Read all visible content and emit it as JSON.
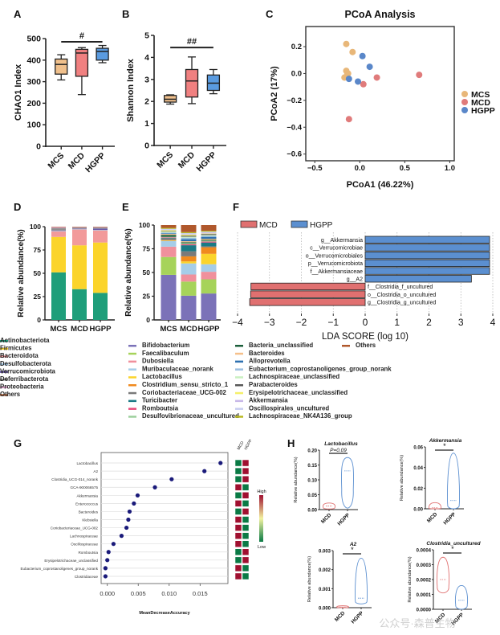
{
  "figure": {
    "panel_labels": [
      "A",
      "B",
      "C",
      "D",
      "E",
      "F",
      "G",
      "H"
    ],
    "watermark": "公众号·森普生物"
  },
  "chart_data": [
    {
      "panel": "A",
      "type": "box",
      "title": "",
      "ylabel": "CHAO1 Index",
      "xlabel": "",
      "categories": [
        "MCS",
        "MCD",
        "HGPP"
      ],
      "ylim": [
        0,
        500
      ],
      "yticks": [
        0,
        100,
        200,
        300,
        400,
        500
      ],
      "colors": [
        "#f0c08c",
        "#f08080",
        "#5a9be0"
      ],
      "boxes": [
        {
          "min": 308,
          "q1": 335,
          "median": 380,
          "q3": 405,
          "max": 425
        },
        {
          "min": 240,
          "q1": 325,
          "median": 433,
          "q3": 450,
          "max": 458
        },
        {
          "min": 388,
          "q1": 400,
          "median": 440,
          "q3": 455,
          "max": 468
        }
      ],
      "significance": {
        "label": "#",
        "from": "MCS",
        "to": "HGPP",
        "y": 485
      }
    },
    {
      "panel": "B",
      "type": "box",
      "title": "",
      "ylabel": "Shannon Index",
      "xlabel": "",
      "categories": [
        "MCS",
        "MCD",
        "HGPP"
      ],
      "ylim": [
        0,
        5
      ],
      "yticks": [
        0,
        1,
        2,
        3,
        4,
        5
      ],
      "colors": [
        "#f0c08c",
        "#f08080",
        "#5a9be0"
      ],
      "boxes": [
        {
          "min": 1.88,
          "q1": 1.97,
          "median": 2.1,
          "q3": 2.27,
          "max": 2.3
        },
        {
          "min": 1.9,
          "q1": 2.2,
          "median": 2.93,
          "q3": 3.45,
          "max": 4.02
        },
        {
          "min": 2.35,
          "q1": 2.5,
          "median": 2.83,
          "q3": 3.2,
          "max": 3.45
        }
      ],
      "significance": {
        "label": "##",
        "from": "MCS",
        "to": "HGPP",
        "y": 4.45
      }
    },
    {
      "panel": "C",
      "type": "scatter",
      "title": "PCoA Analysis",
      "xlabel": "PCoA1 (46.22%)",
      "ylabel": "PCoA2 (17%)",
      "xlim": [
        -0.6,
        1.05
      ],
      "ylim": [
        -0.65,
        0.35
      ],
      "xticks": [
        -0.5,
        0.0,
        0.5,
        1.0
      ],
      "yticks": [
        0.2,
        0.0,
        -0.2,
        -0.4,
        -0.6
      ],
      "legend_position": "right",
      "series": [
        {
          "name": "MCS",
          "color": "#e8b779",
          "points": [
            [
              -0.15,
              0.22
            ],
            [
              -0.08,
              0.16
            ],
            [
              -0.15,
              0.02
            ],
            [
              -0.13,
              0.0
            ],
            [
              -0.17,
              -0.03
            ],
            [
              -0.14,
              -0.01
            ]
          ]
        },
        {
          "name": "MCD",
          "color": "#e07b7b",
          "points": [
            [
              0.19,
              -0.03
            ],
            [
              0.66,
              -0.01
            ],
            [
              0.04,
              -0.08
            ],
            [
              -0.12,
              -0.34
            ]
          ]
        },
        {
          "name": "HGPP",
          "color": "#5a87c9",
          "points": [
            [
              0.03,
              0.13
            ],
            [
              0.11,
              0.05
            ],
            [
              -0.12,
              -0.04
            ],
            [
              -0.02,
              -0.06
            ]
          ]
        }
      ]
    },
    {
      "panel": "D",
      "type": "bar",
      "stacked": true,
      "ylabel": "Relative abundance(%)",
      "categories": [
        "MCS",
        "MCD",
        "HGPP"
      ],
      "ylim": [
        0,
        100
      ],
      "yticks": [
        0,
        25,
        50,
        75,
        100
      ],
      "series": [
        {
          "name": "Actinobacteriota",
          "color": "#1f9e7a",
          "values": [
            51,
            33,
            29
          ]
        },
        {
          "name": "Firmicutes",
          "color": "#fbd42b",
          "values": [
            38,
            47,
            54
          ]
        },
        {
          "name": "Bacteroidota",
          "color": "#f29a9a",
          "values": [
            6,
            17,
            13
          ]
        },
        {
          "name": "Desulfobacterota",
          "color": "#a8cce8",
          "values": [
            0.5,
            0.5,
            0.5
          ]
        },
        {
          "name": "Verrucomicrobiota",
          "color": "#6a5aa8",
          "values": [
            0.5,
            0.5,
            1.5
          ]
        },
        {
          "name": "Deferribacterota",
          "color": "#8e8e8e",
          "values": [
            2.5,
            1,
            1
          ]
        },
        {
          "name": "Proteobacteria",
          "color": "#d9a0c8",
          "values": [
            1,
            0.5,
            0.5
          ]
        },
        {
          "name": "Others",
          "color": "#b5653a",
          "values": [
            0.5,
            0.5,
            0.5
          ]
        }
      ]
    },
    {
      "panel": "E",
      "type": "bar",
      "stacked": true,
      "ylabel": "Relative abundance(%)",
      "categories": [
        "MCS",
        "MCD",
        "HGPP"
      ],
      "ylim": [
        0,
        100
      ],
      "yticks": [
        0,
        25,
        50,
        75,
        100
      ],
      "series": [
        {
          "name": "Bifidobacterium",
          "color": "#7b72b8",
          "values": [
            48,
            24,
            28
          ]
        },
        {
          "name": "Faecalibaculum",
          "color": "#a6d35a",
          "values": [
            19,
            14,
            15
          ]
        },
        {
          "name": "Dubosiella",
          "color": "#f0909c",
          "values": [
            11,
            7,
            8
          ]
        },
        {
          "name": "Muribaculaceae_norank",
          "color": "#a6cde8",
          "values": [
            6,
            11,
            8
          ]
        },
        {
          "name": "Lactobacillus",
          "color": "#fbd42b",
          "values": [
            0.5,
            2,
            11
          ]
        },
        {
          "name": "Clostridium_sensu_stricto_1",
          "color": "#f08a1e",
          "values": [
            0.5,
            5,
            7
          ]
        },
        {
          "name": "Coriobacteriaceae_UCG-002",
          "color": "#7a7a7a",
          "values": [
            2,
            5,
            1
          ]
        },
        {
          "name": "Turicibacter",
          "color": "#1a7a86",
          "values": [
            0.5,
            6,
            4
          ]
        },
        {
          "name": "Romboutsia",
          "color": "#e84a7a",
          "values": [
            0.5,
            1,
            1
          ]
        },
        {
          "name": "Desulfovibrionaceae_uncultured",
          "color": "#9ccf9c",
          "values": [
            0.5,
            1,
            1
          ]
        },
        {
          "name": "Bacteria_unclassified",
          "color": "#1b5e3a",
          "values": [
            2,
            1,
            1
          ]
        },
        {
          "name": "Bacteroides",
          "color": "#f5c08a",
          "values": [
            1,
            1,
            1
          ]
        },
        {
          "name": "Alloprevotella",
          "color": "#2d70b0",
          "values": [
            0.5,
            2,
            2
          ]
        },
        {
          "name": "Eubacterium_coprostanoligenes_group_norank",
          "color": "#9bbfe0",
          "values": [
            1,
            1.5,
            1
          ]
        },
        {
          "name": "Lachnospiraceae_unclassified",
          "color": "#c9f0c0",
          "values": [
            1,
            1,
            1
          ]
        },
        {
          "name": "Parabacteroides",
          "color": "#585858",
          "values": [
            0.5,
            1,
            1
          ]
        },
        {
          "name": "Erysipelotrichaceae_unclassified",
          "color": "#f5f06a",
          "values": [
            1,
            1,
            0.5
          ]
        },
        {
          "name": "Akkermansia",
          "color": "#c8b8e8",
          "values": [
            0.5,
            0.5,
            1
          ]
        },
        {
          "name": "Oscillospirales_uncultured",
          "color": "#c8cdf0",
          "values": [
            1,
            1,
            1
          ]
        },
        {
          "name": "Lachnospiraceae_NK4A136_group",
          "color": "#b8b820",
          "values": [
            1,
            1,
            1
          ]
        },
        {
          "name": "Others",
          "color": "#b0582c",
          "values": [
            3,
            7,
            6
          ]
        }
      ]
    },
    {
      "panel": "F",
      "type": "bar",
      "orientation": "horizontal",
      "xlabel": "LDA SCORE (log 10)",
      "xlim": [
        -4,
        4
      ],
      "xticks": [
        -4,
        -3,
        -2,
        -1,
        0,
        1,
        2,
        3,
        4
      ],
      "legend": [
        {
          "name": "MCD",
          "color": "#e07070"
        },
        {
          "name": "HGPP",
          "color": "#5b8fd0"
        }
      ],
      "legend_position": "top-left",
      "grid": true,
      "bars": [
        {
          "label": "g__Akkermansia",
          "value": 3.9,
          "group": "HGPP"
        },
        {
          "label": "c__Verrucomicrobiae",
          "value": 3.9,
          "group": "HGPP"
        },
        {
          "label": "o__Verrucomicrobiales",
          "value": 3.9,
          "group": "HGPP"
        },
        {
          "label": "p__Verrucomicrobiota",
          "value": 3.9,
          "group": "HGPP"
        },
        {
          "label": "f__Akkermansiaceae",
          "value": 3.9,
          "group": "HGPP"
        },
        {
          "label": "g__A2",
          "value": 3.33,
          "group": "HGPP"
        },
        {
          "label": "f__Clostridia_f_uncultured",
          "value": -3.58,
          "group": "MCD"
        },
        {
          "label": "o__Clostridia_o_uncultured",
          "value": -3.59,
          "group": "MCD"
        },
        {
          "label": "g__Clostridia_g_uncultured",
          "value": -3.62,
          "group": "MCD"
        }
      ]
    },
    {
      "panel": "G",
      "type": "scatter",
      "subtype": "dot-importance",
      "xlabel": "MeanDecreaseAccuracy",
      "xlim": [
        -0.001,
        0.0195
      ],
      "xticks": [
        0.0,
        0.005,
        0.01,
        0.015
      ],
      "xtick_labels": [
        "0.000",
        "0.005",
        "0.010",
        "0.015"
      ],
      "heatmap_columns": [
        "MCD",
        "HGPP"
      ],
      "heatmap_legend": {
        "high": "High",
        "low": "Low",
        "colors": [
          "#0a7a45",
          "#f2f2a0",
          "#a01030"
        ]
      },
      "features": [
        {
          "name": "Lactobacillus",
          "value": 0.0183,
          "heat": [
            "low",
            "high"
          ]
        },
        {
          "name": "A2",
          "value": 0.0157,
          "heat": [
            "low",
            "high"
          ]
        },
        {
          "name": "Clostridia_UCG-014_norank",
          "value": 0.0104,
          "heat": [
            "low",
            "high"
          ]
        },
        {
          "name": "GCA-900066575",
          "value": 0.0077,
          "heat": [
            "high",
            "low"
          ]
        },
        {
          "name": "Akkermansia",
          "value": 0.0049,
          "heat": [
            "low",
            "high"
          ]
        },
        {
          "name": "Enterococcus",
          "value": 0.0043,
          "heat": [
            "high",
            "low"
          ]
        },
        {
          "name": "Bacteroides",
          "value": 0.0036,
          "heat": [
            "low",
            "high"
          ]
        },
        {
          "name": "Klebsiella",
          "value": 0.0034,
          "heat": [
            "high",
            "low"
          ]
        },
        {
          "name": "Coriobacteriaceae_UCG-002",
          "value": 0.0031,
          "heat": [
            "high",
            "low"
          ]
        },
        {
          "name": "Lachnospiraceae",
          "value": 0.0023,
          "heat": [
            "high",
            "low"
          ]
        },
        {
          "name": "Oscillospiraceae",
          "value": 0.001,
          "heat": [
            "high",
            "low"
          ]
        },
        {
          "name": "Romboutsia",
          "value": 0.0002,
          "heat": [
            "low",
            "high"
          ]
        },
        {
          "name": "Erysipelotrichaceae_unclassified",
          "value": 0.0,
          "heat": [
            "low",
            "high"
          ]
        },
        {
          "name": "Eubacterium_coprostanoligenes_group_norank",
          "value": -0.0003,
          "heat": [
            "high",
            "low"
          ]
        },
        {
          "name": "Clostridiaceae",
          "value": -0.0003,
          "heat": [
            "high",
            "low"
          ]
        }
      ]
    },
    {
      "panel": "H",
      "type": "violin",
      "ylabel": "Relative abundance(%)",
      "categories": [
        "MCD",
        "HGPP"
      ],
      "colors": {
        "MCD": "#e07070",
        "HGPP": "#5b8fd0"
      },
      "plots": [
        {
          "title": "Lactobacillus",
          "ylim": [
            0,
            0.2
          ],
          "yticks": [
            "0.00",
            "0.05",
            "0.10",
            "0.15",
            "0.20"
          ],
          "yvals": [
            0,
            0.05,
            0.1,
            0.15,
            0.2
          ],
          "annotation": "P=0.09",
          "groups": [
            {
              "min": 0.002,
              "max": 0.022,
              "median": 0.012
            },
            {
              "min": 0.005,
              "max": 0.175,
              "median": 0.13
            }
          ]
        },
        {
          "title": "Akkermansia",
          "ylim": [
            0,
            0.06
          ],
          "yticks": [
            "0.00",
            "0.02",
            "0.04",
            "0.06"
          ],
          "yvals": [
            0,
            0.02,
            0.04,
            0.06
          ],
          "annotation": "*",
          "groups": [
            {
              "min": 0.0,
              "max": 0.006,
              "median": 0.001
            },
            {
              "min": 0.0,
              "max": 0.054,
              "median": 0.008
            }
          ]
        },
        {
          "title": "A2",
          "ylim": [
            0,
            0.003
          ],
          "yticks": [
            "0.000",
            "0.001",
            "0.002",
            "0.003"
          ],
          "yvals": [
            0,
            0.001,
            0.002,
            0.003
          ],
          "annotation": "*",
          "groups": [
            {
              "min": 0.0,
              "max": 0.0001,
              "median": 3e-05
            },
            {
              "min": 0.0002,
              "max": 0.0026,
              "median": 0.0005
            }
          ]
        },
        {
          "title": "Clostridia_uncultured",
          "ylim": [
            0,
            0.0004
          ],
          "yticks": [
            "0.0000",
            "0.0001",
            "0.0002",
            "0.0003",
            "0.0004"
          ],
          "yvals": [
            0,
            0.0001,
            0.0002,
            0.0003,
            0.0004
          ],
          "annotation": "*",
          "groups": [
            {
              "min": 0.00011,
              "max": 0.00035,
              "median": 0.0002
            },
            {
              "min": 0.0,
              "max": 0.00016,
              "median": 6e-05
            }
          ]
        }
      ]
    }
  ]
}
